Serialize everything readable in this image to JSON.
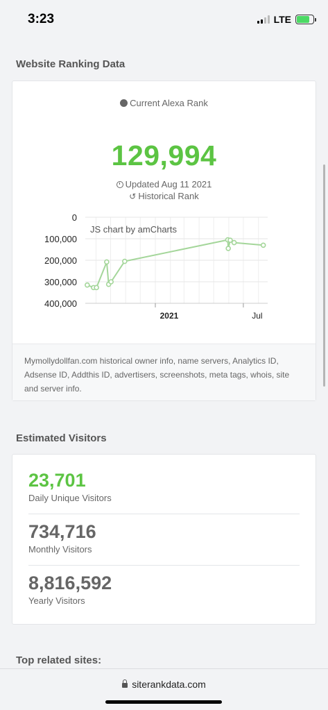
{
  "status_bar": {
    "time": "3:23",
    "network": "LTE"
  },
  "ranking": {
    "section_title": "Website Ranking Data",
    "label": "Current Alexa Rank",
    "rank": "129,994",
    "updated": "Updated Aug 11 2021",
    "historical": "Historical Rank",
    "footer_text": "Mymollydollfan.com historical owner info, name servers, Analytics ID, Adsense ID, Addthis ID, advertisers, screenshots, meta tags, whois, site and server info."
  },
  "chart_data": {
    "type": "line",
    "watermark": "JS chart by amCharts",
    "y_ticks": [
      "0",
      "100,000",
      "200,000",
      "300,000",
      "400,000"
    ],
    "ylim": [
      0,
      400000
    ],
    "y_reversed": true,
    "x_ticks": [
      {
        "label": "2021",
        "bold": true,
        "date": "2021-01-01"
      },
      {
        "label": "Jul",
        "bold": false,
        "date": "2021-07-01"
      }
    ],
    "xlim": [
      "2020-08-10",
      "2021-08-20"
    ],
    "line_color": "#a4d69a",
    "series": [
      {
        "points": [
          {
            "x": "2020-08-14",
            "y": 315000
          },
          {
            "x": "2020-08-27",
            "y": 327000
          },
          {
            "x": "2020-09-02",
            "y": 327000
          },
          {
            "x": "2020-09-23",
            "y": 208000
          },
          {
            "x": "2020-09-27",
            "y": 312000
          },
          {
            "x": "2020-10-02",
            "y": 300000
          },
          {
            "x": "2020-10-30",
            "y": 205000
          },
          {
            "x": "2021-05-30",
            "y": 105000
          },
          {
            "x": "2021-05-31",
            "y": 145000
          },
          {
            "x": "2021-06-04",
            "y": 107000
          },
          {
            "x": "2021-06-12",
            "y": 118000
          },
          {
            "x": "2021-08-11",
            "y": 129994
          }
        ]
      }
    ]
  },
  "visitors": {
    "section_title": "Estimated Visitors",
    "daily": {
      "value": "23,701",
      "label": "Daily Unique Visitors"
    },
    "monthly": {
      "value": "734,716",
      "label": "Monthly Visitors"
    },
    "yearly": {
      "value": "8,816,592",
      "label": "Yearly Visitors"
    }
  },
  "related": {
    "section_title": "Top related sites:"
  },
  "browser": {
    "url": "siterankdata.com"
  }
}
